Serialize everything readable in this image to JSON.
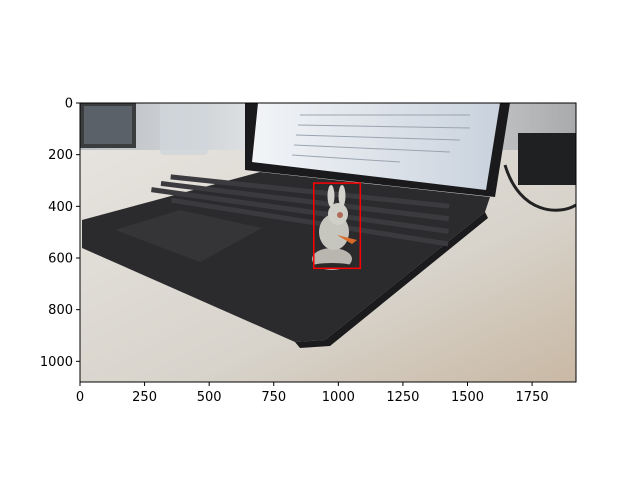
{
  "image": {
    "width": 1920,
    "height": 1080,
    "description_palette": {
      "desk": "#d9d6d0",
      "laptop": "#2c2c2e",
      "screen": "#e4e8ee",
      "bunny": "#c9c8c0",
      "bbox": "#ff0000"
    }
  },
  "axes": {
    "x_ticks": [
      0,
      250,
      500,
      750,
      1000,
      1250,
      1500,
      1750
    ],
    "y_ticks": [
      0,
      200,
      400,
      600,
      800,
      1000
    ],
    "xlim": [
      0,
      1920
    ],
    "ylim": [
      1080,
      0
    ]
  },
  "bounding_box": {
    "x_min": 905,
    "y_min": 310,
    "x_max": 1085,
    "y_max": 640,
    "color": "#ff0000"
  }
}
